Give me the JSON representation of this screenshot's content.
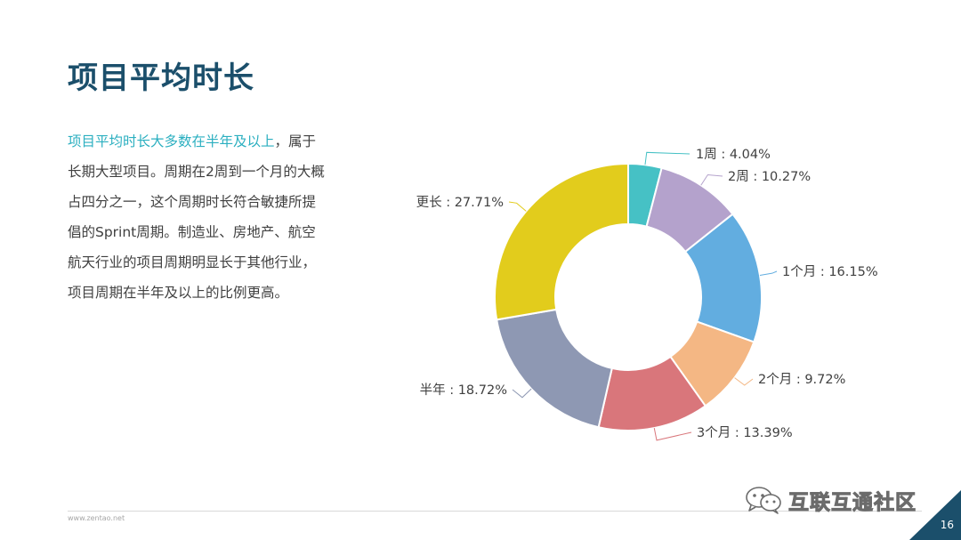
{
  "slide": {
    "title": "项目平均时长",
    "body_highlight": "项目平均时长大多数在半年及以上",
    "body_rest": "，属于长期大型项目。周期在2周到一个月的大概占四分之一，这个周期时长符合敏捷所提倡的Sprint周期。制造业、房地产、航空航天行业的项目周期明显长于其他行业，项目周期在半年及以上的比例更高。",
    "footer_url": "www.zentao.net",
    "page_number": "16",
    "watermark": "互联互通社区"
  },
  "chart_data": {
    "type": "pie",
    "variant": "donut",
    "title": "",
    "slices": [
      {
        "name": "1周",
        "value": 4.04,
        "label": "1周 : 4.04%",
        "color": "#46c1c5"
      },
      {
        "name": "2周",
        "value": 10.27,
        "label": "2周 : 10.27%",
        "color": "#b4a2cc"
      },
      {
        "name": "1个月",
        "value": 16.15,
        "label": "1个月 : 16.15%",
        "color": "#62ade0"
      },
      {
        "name": "2个月",
        "value": 9.72,
        "label": "2个月 : 9.72%",
        "color": "#f4b784"
      },
      {
        "name": "3个月",
        "value": 13.39,
        "label": "3个月 : 13.39%",
        "color": "#d9767b"
      },
      {
        "name": "半年",
        "value": 18.72,
        "label": "半年 : 18.72%",
        "color": "#8e98b3"
      },
      {
        "name": "更长",
        "value": 27.71,
        "label": "更长 : 27.71%",
        "color": "#e2cc1c"
      }
    ],
    "start_angle_deg": 0,
    "direction": "clockwise",
    "legend": "none"
  }
}
